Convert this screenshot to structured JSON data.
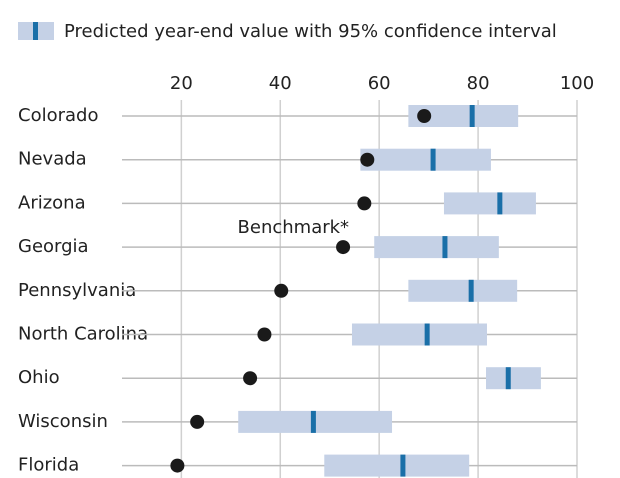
{
  "chart_data": {
    "type": "interval",
    "legend_label": "Predicted year-end value with 95% confidence interval",
    "annotation": "Benchmark*",
    "categories": [
      "Colorado",
      "Nevada",
      "Arizona",
      "Georgia",
      "Pennsylvania",
      "North Carolina",
      "Ohio",
      "Wisconsin",
      "Florida"
    ],
    "low": [
      65.9,
      56.2,
      73.1,
      59.0,
      65.9,
      54.5,
      81.6,
      31.5,
      48.9
    ],
    "high": [
      88.1,
      82.6,
      91.7,
      84.2,
      87.9,
      81.8,
      92.7,
      62.6,
      78.2
    ],
    "values": [
      78.8,
      70.9,
      84.4,
      73.3,
      78.6,
      69.7,
      86.1,
      46.7,
      64.8
    ],
    "benchmark": [
      69.1,
      57.6,
      57.0,
      52.7,
      40.2,
      36.8,
      33.9,
      23.2,
      19.2
    ],
    "interval_color": "#c5d1e6",
    "median_color": "#1a6fa8",
    "benchmark_color": "#1a1a1a",
    "xlim": [
      8,
      100
    ],
    "xticks": [
      20,
      40,
      60,
      80,
      100
    ],
    "grid": true
  }
}
